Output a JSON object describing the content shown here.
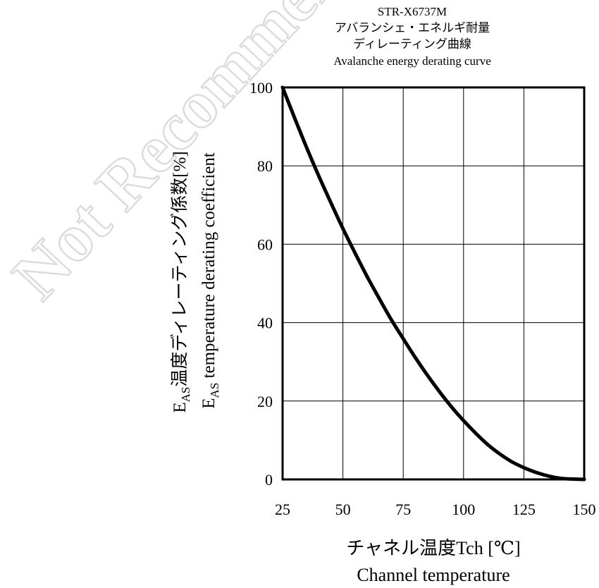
{
  "watermark": "Not Recommended",
  "chart_data": {
    "type": "line",
    "title_lines": [
      "STR-X6737M",
      "アバランシェ・エネルギ耐量",
      "ディレーティング曲線",
      "Avalanche energy derating curve"
    ],
    "ylabel_jp_prefix": "E",
    "ylabel_jp_sub": "AS",
    "ylabel_jp_rest": "温度ディレーティング係数[%]",
    "ylabel_en_prefix": "E",
    "ylabel_en_sub": "AS",
    "ylabel_en_rest": " temperature derating coefficient",
    "xlabel_jp": "チャネル温度Tch [℃]",
    "xlabel_en": "Channel temperature",
    "xlim": [
      25,
      150
    ],
    "ylim": [
      0,
      100
    ],
    "x_ticks": [
      25,
      50,
      75,
      100,
      125,
      150
    ],
    "y_ticks": [
      0,
      20,
      40,
      60,
      80,
      100
    ],
    "grid": true,
    "series": [
      {
        "x": [
          25,
          30,
          35,
          40,
          45,
          50,
          55,
          60,
          65,
          70,
          75,
          80,
          85,
          90,
          95,
          100,
          105,
          110,
          115,
          120,
          125,
          130,
          135,
          140,
          145,
          150
        ],
        "values": [
          100,
          92.2,
          84.6,
          77.4,
          70.6,
          64.0,
          57.8,
          51.8,
          46.2,
          40.8,
          35.9,
          31.1,
          26.6,
          22.4,
          18.5,
          15.0,
          11.8,
          8.9,
          6.5,
          4.5,
          3.0,
          1.8,
          0.9,
          0.3,
          0.1,
          0
        ]
      }
    ]
  }
}
